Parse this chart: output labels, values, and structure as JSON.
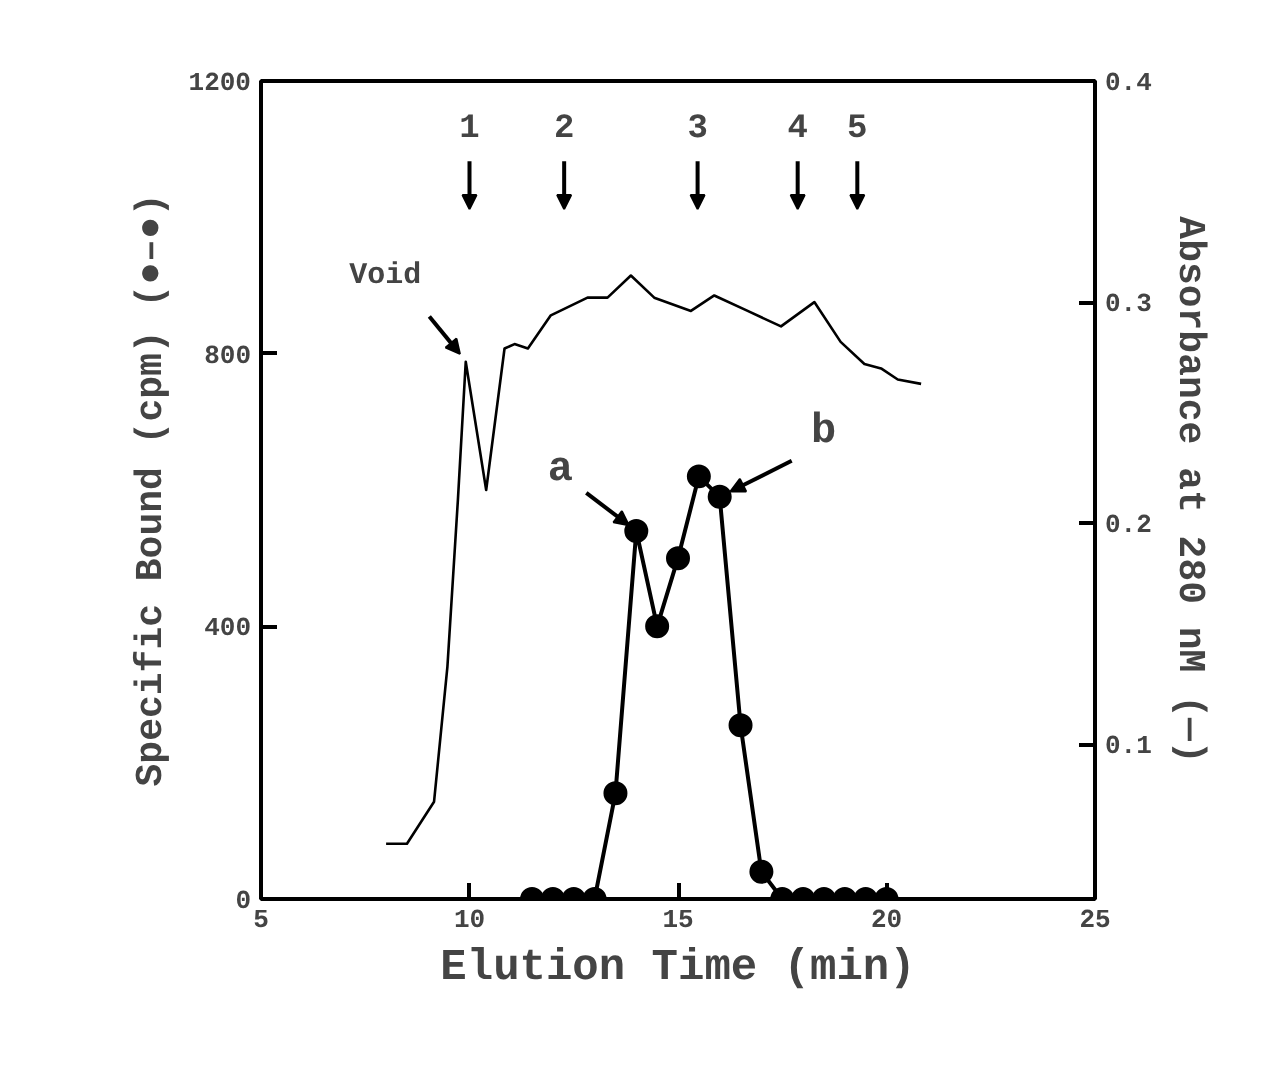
{
  "chart_data": {
    "type": "line",
    "xlabel": "Elution Time (min)",
    "ylabel": "Specific Bound (cpm) (●–●)",
    "y2label": "Absorbance at 280 nM (—)",
    "xlim": [
      5,
      25
    ],
    "xticks": [
      5,
      10,
      15,
      20,
      25
    ],
    "ylim": [
      0,
      1200
    ],
    "yticks": [
      0,
      400,
      800,
      1200
    ],
    "y2lim": [
      0.03,
      0.4
    ],
    "y2ticks": [
      0.1,
      0.2,
      0.3,
      0.4
    ],
    "grid": false,
    "line_style": "solid",
    "series": [
      {
        "marker": "none",
        "axis": "y2",
        "color": "#000000",
        "x": [
          8.0,
          8.5,
          9.15,
          9.47,
          9.72,
          9.91,
          10.4,
          10.84,
          11.08,
          11.4,
          11.95,
          12.83,
          13.31,
          13.87,
          14.43,
          15.31,
          15.87,
          16.67,
          17.47,
          18.27,
          18.9,
          19.47,
          19.87,
          20.27,
          20.83
        ],
        "values": [
          0.055,
          0.055,
          0.074,
          0.135,
          0.21,
          0.273,
          0.215,
          0.279,
          0.281,
          0.279,
          0.294,
          0.302,
          0.302,
          0.312,
          0.302,
          0.296,
          0.303,
          0.296,
          0.289,
          0.3,
          0.282,
          0.272,
          0.27,
          0.265,
          0.263
        ]
      },
      {
        "marker": "circle",
        "color": "#000000",
        "x": [
          11.5,
          12,
          12.5,
          13,
          13.5,
          14,
          14.5,
          15,
          15.5,
          16,
          16.5,
          17,
          17.5,
          18,
          18.5,
          19,
          19.5,
          20
        ],
        "values": [
          0,
          0,
          0,
          0,
          155,
          540,
          400,
          500,
          620,
          590,
          255,
          40,
          0,
          0,
          0,
          0,
          0,
          0
        ]
      }
    ],
    "annotations": [
      "1",
      "2",
      "3",
      "4",
      "5",
      {
        "text": "Void",
        "x": 9.9,
        "y": 790
      },
      {
        "text": "a",
        "x": 14,
        "y": 540
      },
      {
        "text": "b",
        "x": 16,
        "y": 590
      }
    ]
  }
}
